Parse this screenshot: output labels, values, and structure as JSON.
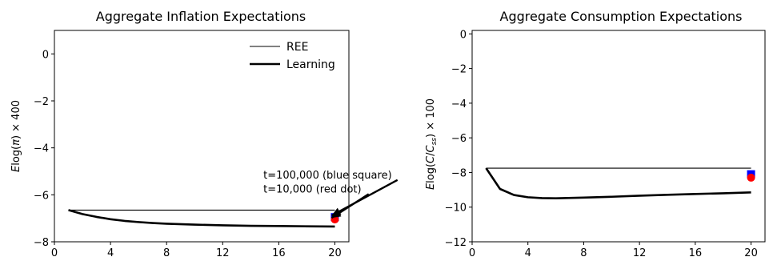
{
  "chart_data": [
    {
      "type": "line",
      "title": "Aggregate Inflation Expectations",
      "xlabel": "",
      "ylabel": "Elog(π) × 400",
      "xlim": [
        0,
        21
      ],
      "ylim": [
        -8,
        1
      ],
      "xticks": [
        0,
        4,
        8,
        12,
        16,
        20
      ],
      "yticks": [
        0,
        -2,
        -4,
        -6,
        -8
      ],
      "legend_position": "top-right",
      "series": [
        {
          "name": "REE",
          "style": "thin",
          "color": "#000000",
          "x": [
            1,
            20
          ],
          "y": [
            -6.65,
            -6.65
          ]
        },
        {
          "name": "Learning",
          "style": "thick",
          "color": "#000000",
          "x": [
            1,
            2,
            3,
            4,
            5,
            6,
            7,
            8,
            10,
            12,
            14,
            16,
            18,
            20
          ],
          "y": [
            -6.65,
            -6.82,
            -6.94,
            -7.04,
            -7.11,
            -7.16,
            -7.2,
            -7.23,
            -7.27,
            -7.3,
            -7.32,
            -7.33,
            -7.34,
            -7.35
          ]
        }
      ],
      "markers": [
        {
          "label": "t=100,000 (blue square)",
          "shape": "square",
          "color": "#0000ff",
          "x": 20,
          "y": -6.95
        },
        {
          "label": "t=10,000 (red dot)",
          "shape": "circle",
          "color": "#ff0000",
          "x": 20,
          "y": -7.05
        }
      ],
      "annotations": [
        {
          "text": "t=100,000 (blue square)",
          "text_x": 14.9,
          "text_y": -5.3,
          "arrow_to": [
            20,
            -6.95
          ]
        },
        {
          "text": "t=10,000 (red dot)",
          "text_x": 14.9,
          "text_y": -5.9,
          "arrow_to": [
            20,
            -7.05
          ]
        }
      ]
    },
    {
      "type": "line",
      "title": "Aggregate Consumption Expectations",
      "xlabel": "",
      "ylabel": "Elog(C/Css) × 100",
      "xlim": [
        0,
        21
      ],
      "ylim": [
        -12,
        0.2
      ],
      "xticks": [
        0,
        4,
        8,
        12,
        16,
        20
      ],
      "yticks": [
        0,
        -2,
        -4,
        -6,
        -8,
        -10,
        -12
      ],
      "series": [
        {
          "name": "REE",
          "style": "thin",
          "color": "#000000",
          "x": [
            1,
            20
          ],
          "y": [
            -7.75,
            -7.75
          ]
        },
        {
          "name": "Learning",
          "style": "thick",
          "color": "#000000",
          "x": [
            1,
            2,
            3,
            4,
            5,
            6,
            8,
            10,
            12,
            14,
            16,
            18,
            20
          ],
          "y": [
            -7.75,
            -8.95,
            -9.3,
            -9.43,
            -9.48,
            -9.49,
            -9.45,
            -9.4,
            -9.34,
            -9.29,
            -9.24,
            -9.2,
            -9.15
          ]
        }
      ],
      "markers": [
        {
          "label": "blue square",
          "shape": "square",
          "color": "#0000ff",
          "x": 20,
          "y": -8.1
        },
        {
          "label": "red dot",
          "shape": "circle",
          "color": "#ff0000",
          "x": 20,
          "y": -8.3
        }
      ]
    }
  ]
}
